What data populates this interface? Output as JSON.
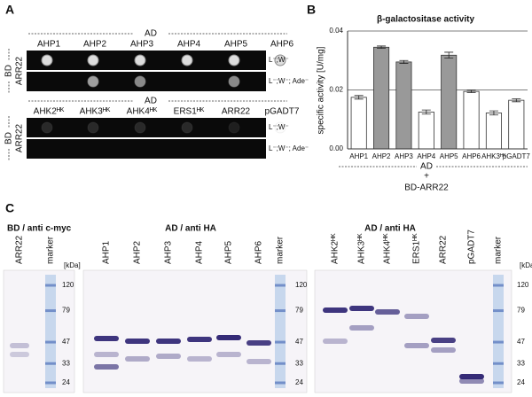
{
  "panel_a": {
    "label": "A",
    "ad": "AD",
    "bd": "BD",
    "blocks": [
      {
        "columns": [
          "AHP1",
          "AHP2",
          "AHP3",
          "AHP4",
          "AHP5",
          "AHP6"
        ],
        "bait": "ARR22",
        "conditions": [
          "L⁻;W⁻",
          "L⁻;W⁻; Ade⁻"
        ]
      },
      {
        "columns": [
          "AHK2ᴴᴷ",
          "AHK3ᴴᴷ",
          "AHK4ᴴᴷ",
          "ERS1ᴴᴷ",
          "ARR22",
          "pGADT7"
        ],
        "bait": "ARR22",
        "conditions": [
          "L⁻;W⁻",
          "L⁻;W⁻; Ade⁻"
        ]
      }
    ]
  },
  "panel_b_label": "B",
  "chart_data": {
    "type": "bar",
    "title": "β-galactositase activity",
    "y_label": "specific activity [U/mg]",
    "categories": [
      "AHP1",
      "AHP2",
      "AHP3",
      "AHP4",
      "AHP5",
      "AHP6",
      "AHK3ᴴᴷ",
      "pGADT7"
    ],
    "values": [
      0.0175,
      0.0345,
      0.0295,
      0.0125,
      0.0318,
      0.0195,
      0.0122,
      0.0165
    ],
    "errors": [
      0.0006,
      0.0004,
      0.0005,
      0.0007,
      0.001,
      0.0004,
      0.0007,
      0.0005
    ],
    "colors": [
      "#ffffff",
      "#999999",
      "#999999",
      "#ffffff",
      "#999999",
      "#ffffff",
      "#ffffff",
      "#ffffff"
    ],
    "ylim": [
      0,
      0.04
    ],
    "yticks": [
      {
        "value": 0,
        "label": "0.00"
      },
      {
        "value": 0.02,
        "label": "0.02"
      },
      {
        "value": 0.04,
        "label": "0.04"
      }
    ],
    "grid": true,
    "x_group": "AD",
    "x_joiner": "+",
    "x_bait": "BD-ARR22"
  },
  "panel_c": {
    "label": "C",
    "blots": [
      {
        "title": "BD / anti c-myc",
        "lanes": [
          "ARR22",
          "marker"
        ],
        "unit": "[kDa]",
        "marker_kda": [
          120,
          79,
          47,
          33,
          24
        ]
      },
      {
        "title": "AD / anti HA",
        "lanes": [
          "AHP1",
          "AHP2",
          "AHP3",
          "AHP4",
          "AHP5",
          "AHP6",
          "marker"
        ],
        "marker_kda": [
          120,
          79,
          47,
          33,
          24
        ]
      },
      {
        "title": "AD / anti HA",
        "lanes": [
          "AHK2ᴴᴷ",
          "AHK3ᴴᴷ",
          "AHK4ᴴᴷ",
          "ERS1ᴴᴷ",
          "ARR22",
          "pGADT7",
          "marker"
        ],
        "unit": "[kDa]",
        "marker_kda": [
          120,
          79,
          47,
          33,
          24
        ]
      }
    ]
  }
}
